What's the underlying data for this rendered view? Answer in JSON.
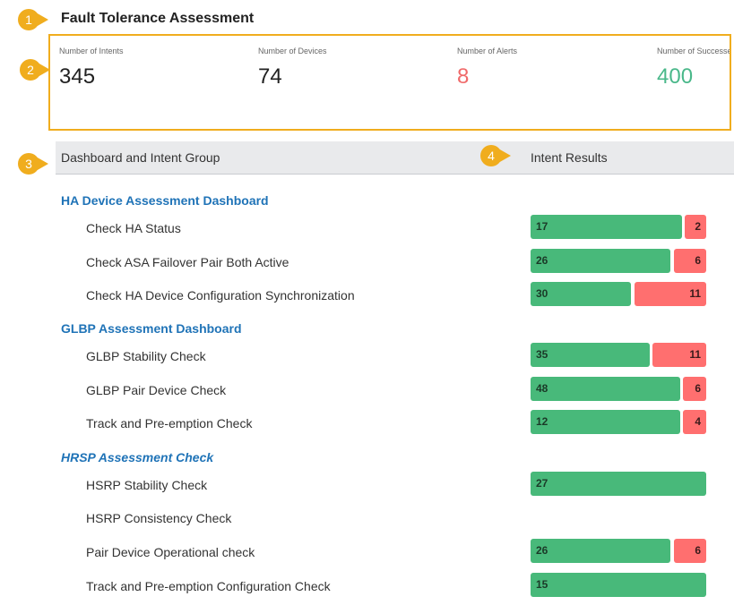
{
  "title": "Fault Tolerance Assessment",
  "callouts": [
    "1",
    "2",
    "3",
    "4"
  ],
  "stats": [
    {
      "label": "Number of Intents",
      "value": "345",
      "color": "#222222"
    },
    {
      "label": "Number of Devices",
      "value": "74",
      "color": "#222222"
    },
    {
      "label": "Number of Alerts",
      "value": "8",
      "color": "#f06a6a"
    },
    {
      "label": "Number of Successes",
      "value": "400",
      "color": "#4ab88a"
    }
  ],
  "table_header": {
    "col1": "Dashboard and Intent Group",
    "col2": "Intent Results"
  },
  "colors": {
    "accent": "#f0ad1e",
    "success": "#48b97a",
    "failure": "#ff6f6f",
    "link": "#1f73b7"
  },
  "groups": [
    {
      "name": "HA Device Assessment Dashboard",
      "italic": false,
      "rows": [
        {
          "label": "Check HA Status",
          "success": 17,
          "fail": 2
        },
        {
          "label": "Check ASA Failover Pair Both Active",
          "success": 26,
          "fail": 6
        },
        {
          "label": "Check HA Device Configuration Synchronization",
          "success": 30,
          "fail": 11
        }
      ]
    },
    {
      "name": "GLBP Assessment Dashboard",
      "italic": false,
      "rows": [
        {
          "label": "GLBP Stability Check",
          "success": 35,
          "fail": 11
        },
        {
          "label": "GLBP Pair Device Check",
          "success": 48,
          "fail": 6
        },
        {
          "label": "Track and Pre-emption Check",
          "success": 12,
          "fail": 4
        }
      ]
    },
    {
      "name": "HRSP Assessment Check",
      "italic": true,
      "rows": [
        {
          "label": "HSRP Stability Check",
          "success": 27,
          "fail": null
        },
        {
          "label": "HSRP Consistency Check",
          "success": null,
          "fail": null
        },
        {
          "label": "Pair Device Operational check",
          "success": 26,
          "fail": 6
        },
        {
          "label": "Track and Pre-emption Configuration Check",
          "success": 15,
          "fail": null
        }
      ]
    }
  ]
}
